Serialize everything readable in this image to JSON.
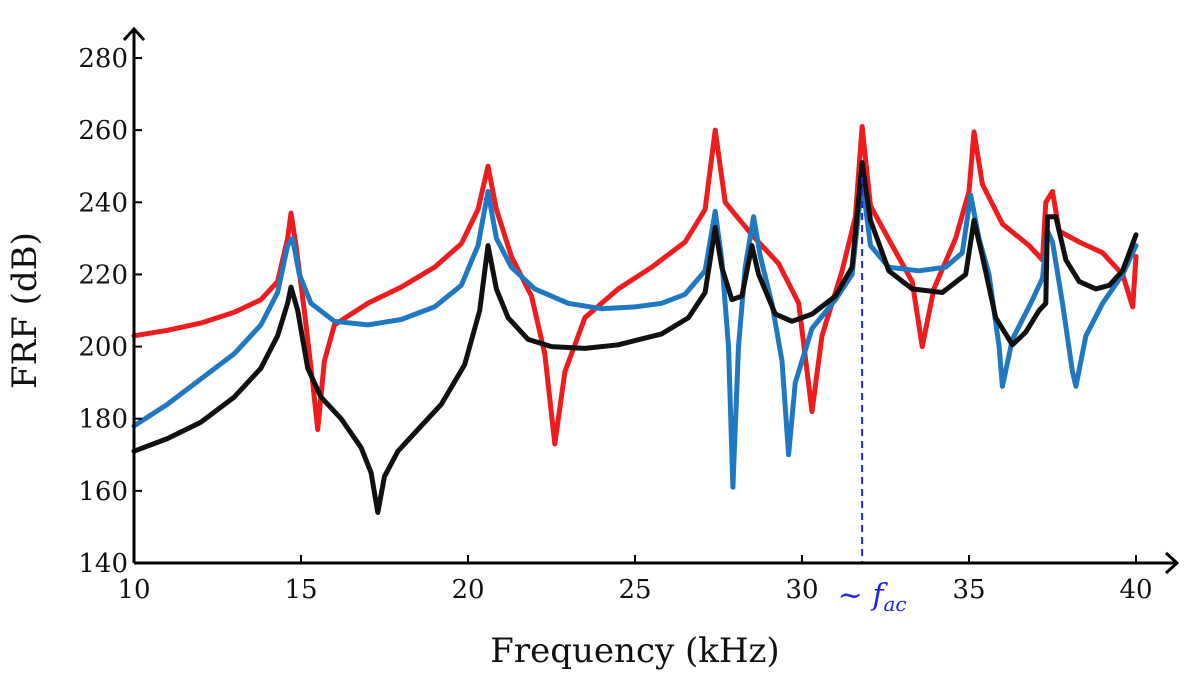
{
  "chart_data": {
    "type": "line",
    "title": "",
    "xlabel": "Frequency (kHz)",
    "ylabel": "FRF (dB)",
    "xlim": [
      10,
      40
    ],
    "ylim": [
      140,
      280
    ],
    "xticks": [
      10,
      15,
      20,
      25,
      30,
      35,
      40
    ],
    "yticks": [
      140,
      160,
      180,
      200,
      220,
      240,
      260,
      280
    ],
    "grid": false,
    "legend": "none",
    "annotation": {
      "label": "~ f_ac",
      "label_prefix": "~",
      "label_symbol": "f",
      "label_subscript": "ac",
      "x": 31.8,
      "style": "dashed vertical line",
      "color": "#2222dd"
    },
    "series": [
      {
        "name": "red",
        "color": "#ee1c1c",
        "points": [
          [
            10,
            203
          ],
          [
            11,
            204.5
          ],
          [
            12,
            206.5
          ],
          [
            13,
            209.5
          ],
          [
            13.8,
            213
          ],
          [
            14.3,
            218
          ],
          [
            14.6,
            230
          ],
          [
            14.7,
            237
          ],
          [
            14.85,
            228
          ],
          [
            15.1,
            210
          ],
          [
            15.35,
            190
          ],
          [
            15.5,
            177
          ],
          [
            15.7,
            196
          ],
          [
            16,
            206
          ],
          [
            17,
            212
          ],
          [
            18,
            216.5
          ],
          [
            19,
            222
          ],
          [
            19.8,
            228.5
          ],
          [
            20.3,
            238
          ],
          [
            20.6,
            250
          ],
          [
            20.85,
            238
          ],
          [
            21.3,
            225
          ],
          [
            21.9,
            214
          ],
          [
            22.3,
            198
          ],
          [
            22.6,
            173
          ],
          [
            22.9,
            193
          ],
          [
            23.5,
            208
          ],
          [
            24.5,
            216
          ],
          [
            25.5,
            222
          ],
          [
            26.5,
            229
          ],
          [
            27.1,
            238
          ],
          [
            27.4,
            260
          ],
          [
            27.7,
            240
          ],
          [
            28.5,
            231
          ],
          [
            29.3,
            223
          ],
          [
            29.9,
            212
          ],
          [
            30.3,
            182
          ],
          [
            30.6,
            203
          ],
          [
            31.2,
            221
          ],
          [
            31.6,
            236
          ],
          [
            31.8,
            261
          ],
          [
            32.05,
            239
          ],
          [
            32.7,
            228
          ],
          [
            33.3,
            218
          ],
          [
            33.6,
            200
          ],
          [
            33.95,
            216
          ],
          [
            34.6,
            230
          ],
          [
            35.0,
            243
          ],
          [
            35.15,
            259.5
          ],
          [
            35.4,
            245
          ],
          [
            36,
            234
          ],
          [
            36.8,
            228
          ],
          [
            37.2,
            224
          ],
          [
            37.3,
            240
          ],
          [
            37.5,
            243
          ],
          [
            37.7,
            232
          ],
          [
            38.3,
            229
          ],
          [
            39,
            226
          ],
          [
            39.6,
            220
          ],
          [
            39.9,
            211
          ],
          [
            40,
            225
          ]
        ]
      },
      {
        "name": "blue",
        "color": "#1f78c2",
        "points": [
          [
            10,
            178
          ],
          [
            11,
            184
          ],
          [
            12,
            191
          ],
          [
            13,
            198
          ],
          [
            13.8,
            206
          ],
          [
            14.3,
            215
          ],
          [
            14.6,
            228
          ],
          [
            14.75,
            230
          ],
          [
            14.95,
            220
          ],
          [
            15.3,
            212
          ],
          [
            16,
            207
          ],
          [
            17,
            206
          ],
          [
            18,
            207.5
          ],
          [
            19,
            211
          ],
          [
            19.8,
            217
          ],
          [
            20.3,
            228
          ],
          [
            20.6,
            243
          ],
          [
            20.85,
            230
          ],
          [
            21.3,
            222
          ],
          [
            22,
            216
          ],
          [
            23,
            212
          ],
          [
            24,
            210.5
          ],
          [
            25,
            211
          ],
          [
            25.8,
            212
          ],
          [
            26.5,
            214.5
          ],
          [
            27.1,
            221
          ],
          [
            27.4,
            237.5
          ],
          [
            27.6,
            224
          ],
          [
            27.8,
            200
          ],
          [
            27.93,
            161
          ],
          [
            28.1,
            200
          ],
          [
            28.3,
            222
          ],
          [
            28.55,
            236
          ],
          [
            28.75,
            225
          ],
          [
            29.1,
            212
          ],
          [
            29.4,
            196
          ],
          [
            29.6,
            170
          ],
          [
            29.8,
            190
          ],
          [
            30.3,
            205
          ],
          [
            31,
            213
          ],
          [
            31.5,
            220
          ],
          [
            31.8,
            246
          ],
          [
            32.05,
            228
          ],
          [
            32.6,
            222
          ],
          [
            33.5,
            221
          ],
          [
            34.3,
            222
          ],
          [
            34.8,
            226
          ],
          [
            35.05,
            242
          ],
          [
            35.3,
            230
          ],
          [
            35.6,
            220
          ],
          [
            35.9,
            200
          ],
          [
            36.0,
            189
          ],
          [
            36.3,
            202
          ],
          [
            36.9,
            213
          ],
          [
            37.2,
            219
          ],
          [
            37.35,
            232
          ],
          [
            37.5,
            229
          ],
          [
            37.8,
            212
          ],
          [
            38.1,
            193
          ],
          [
            38.2,
            189
          ],
          [
            38.5,
            203
          ],
          [
            39,
            212
          ],
          [
            39.6,
            220
          ],
          [
            40,
            228
          ]
        ]
      },
      {
        "name": "black",
        "color": "#111111",
        "points": [
          [
            10,
            171
          ],
          [
            11,
            174.5
          ],
          [
            12,
            179
          ],
          [
            13,
            186
          ],
          [
            13.8,
            194
          ],
          [
            14.3,
            203
          ],
          [
            14.6,
            212
          ],
          [
            14.7,
            216.5
          ],
          [
            14.9,
            210
          ],
          [
            15.2,
            194
          ],
          [
            15.6,
            186
          ],
          [
            16.2,
            180
          ],
          [
            16.8,
            172
          ],
          [
            17.1,
            165
          ],
          [
            17.3,
            154
          ],
          [
            17.5,
            164
          ],
          [
            17.9,
            171
          ],
          [
            18.5,
            177
          ],
          [
            19.2,
            184
          ],
          [
            19.9,
            195
          ],
          [
            20.35,
            210
          ],
          [
            20.6,
            228
          ],
          [
            20.85,
            216
          ],
          [
            21.2,
            208
          ],
          [
            21.8,
            202
          ],
          [
            22.5,
            200
          ],
          [
            23.5,
            199.5
          ],
          [
            24.5,
            200.5
          ],
          [
            25.8,
            203.5
          ],
          [
            26.6,
            208
          ],
          [
            27.1,
            215
          ],
          [
            27.4,
            233
          ],
          [
            27.6,
            222
          ],
          [
            27.9,
            213
          ],
          [
            28.2,
            214
          ],
          [
            28.5,
            228
          ],
          [
            28.7,
            220
          ],
          [
            29.2,
            209
          ],
          [
            29.7,
            207
          ],
          [
            30.3,
            209
          ],
          [
            31,
            214
          ],
          [
            31.5,
            222
          ],
          [
            31.8,
            251
          ],
          [
            32.05,
            235
          ],
          [
            32.6,
            221
          ],
          [
            33.3,
            216
          ],
          [
            34.2,
            215
          ],
          [
            34.9,
            220
          ],
          [
            35.15,
            235
          ],
          [
            35.4,
            225
          ],
          [
            35.8,
            208
          ],
          [
            36.3,
            200.5
          ],
          [
            36.7,
            204
          ],
          [
            37.1,
            210
          ],
          [
            37.3,
            212
          ],
          [
            37.35,
            236
          ],
          [
            37.6,
            236
          ],
          [
            37.9,
            224
          ],
          [
            38.3,
            218
          ],
          [
            38.8,
            216
          ],
          [
            39.2,
            217
          ],
          [
            39.6,
            221
          ],
          [
            40,
            231
          ]
        ]
      }
    ]
  }
}
